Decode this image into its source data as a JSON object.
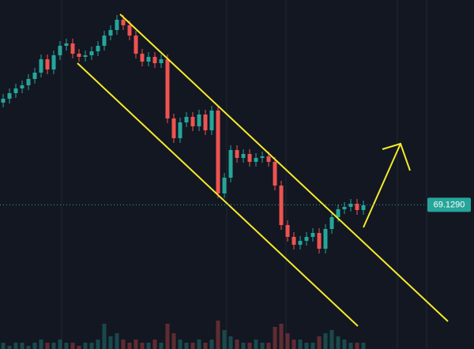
{
  "chart_data": {
    "type": "candlestick",
    "ylim": [
      60.0,
      82.1
    ],
    "up_color": "#26a69a",
    "down_color": "#ef5350",
    "open": [
      75.6,
      75.85,
      76.2,
      76.5,
      76.7,
      77.1,
      77.5,
      78.35,
      77.7,
      78.6,
      79.2,
      79.35,
      78.7,
      78.5,
      78.6,
      78.85,
      79.2,
      79.85,
      80.2,
      80.85,
      80.5,
      79.85,
      78.7,
      78.2,
      78.5,
      78.1,
      78.35,
      74.6,
      73.35,
      74.35,
      74.7,
      74.1,
      74.85,
      73.85,
      75.1,
      69.85,
      70.85,
      72.6,
      72.1,
      72.35,
      71.85,
      72.1,
      72.2,
      71.85,
      70.35,
      67.85,
      67.1,
      66.6,
      66.85,
      67.1,
      67.35,
      66.35,
      67.6,
      68.35,
      68.85,
      69.0,
      69.2,
      68.8
    ],
    "high": [
      76.15,
      76.5,
      76.8,
      77.0,
      77.4,
      77.8,
      78.65,
      78.65,
      78.9,
      79.5,
      79.65,
      79.65,
      79.0,
      78.9,
      79.15,
      79.5,
      80.15,
      80.5,
      81.15,
      81.15,
      80.8,
      80.15,
      79.0,
      78.8,
      78.8,
      78.65,
      78.65,
      74.9,
      74.65,
      75.0,
      75.0,
      75.15,
      75.15,
      75.4,
      75.4,
      71.15,
      72.9,
      72.9,
      72.65,
      72.65,
      72.4,
      72.5,
      72.5,
      72.15,
      70.65,
      68.15,
      67.4,
      67.15,
      67.4,
      67.65,
      67.65,
      67.9,
      68.65,
      69.15,
      69.3,
      69.5,
      69.5,
      69.4
    ],
    "low": [
      75.3,
      75.55,
      75.9,
      76.2,
      76.4,
      76.8,
      77.2,
      77.4,
      77.4,
      78.3,
      78.9,
      78.4,
      78.2,
      78.2,
      78.3,
      78.55,
      78.9,
      79.55,
      79.9,
      80.2,
      79.55,
      78.4,
      77.9,
      77.9,
      77.8,
      77.8,
      74.3,
      73.05,
      73.05,
      74.05,
      73.8,
      73.8,
      73.55,
      73.55,
      69.55,
      69.55,
      70.55,
      71.8,
      71.8,
      71.55,
      71.55,
      71.8,
      71.55,
      70.05,
      67.55,
      66.8,
      66.3,
      66.3,
      66.55,
      66.8,
      66.05,
      66.05,
      67.3,
      68.05,
      68.55,
      68.7,
      68.5,
      68.5
    ],
    "close": [
      75.85,
      76.2,
      76.5,
      76.7,
      77.1,
      77.5,
      78.35,
      77.7,
      78.6,
      79.2,
      79.35,
      78.7,
      78.5,
      78.6,
      78.85,
      79.2,
      79.85,
      80.2,
      80.85,
      80.5,
      79.85,
      78.7,
      78.2,
      78.5,
      78.1,
      78.35,
      74.6,
      73.35,
      74.35,
      74.7,
      74.1,
      74.85,
      73.85,
      75.1,
      69.85,
      70.85,
      72.6,
      72.1,
      72.35,
      71.85,
      72.1,
      72.2,
      71.85,
      70.35,
      67.85,
      67.1,
      66.6,
      66.85,
      67.1,
      67.35,
      66.35,
      67.6,
      68.35,
      68.85,
      69.0,
      69.2,
      68.8,
      69.1
    ],
    "volume": [
      2,
      1,
      2,
      2,
      1,
      2,
      3,
      2,
      2,
      3,
      2,
      2,
      1,
      2,
      2,
      3,
      8,
      4,
      5,
      3,
      2,
      3,
      2,
      2,
      3,
      2,
      8,
      5,
      3,
      2,
      2,
      3,
      2,
      3,
      9,
      6,
      4,
      3,
      2,
      2,
      3,
      2,
      2,
      7,
      8,
      5,
      3,
      3,
      2,
      2,
      4,
      5,
      6,
      4,
      3,
      2,
      2,
      2
    ],
    "vlim": [
      0,
      10
    ],
    "price_label": {
      "value": 69.129,
      "label": "69.1290"
    }
  }
}
